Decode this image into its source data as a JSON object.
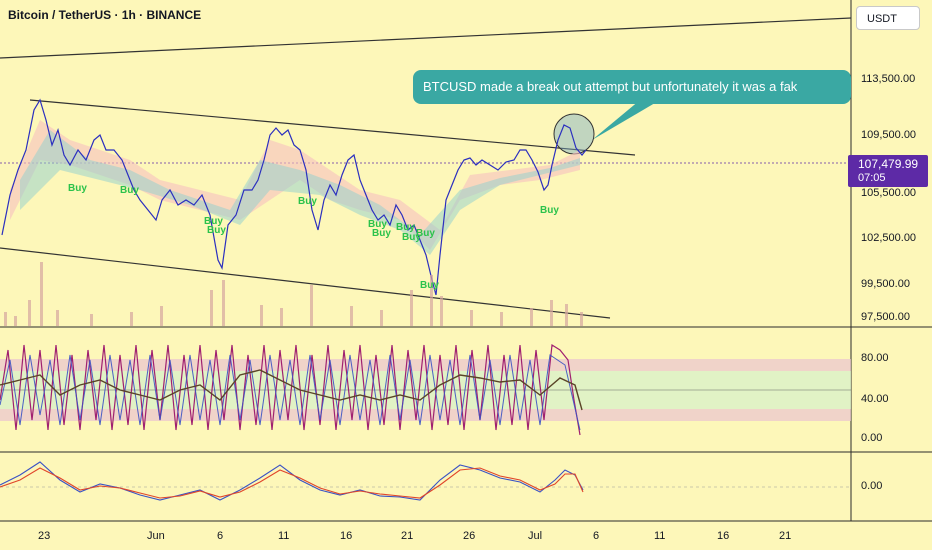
{
  "header": {
    "title": "Bitcoin / TetherUS · 1h · BINANCE",
    "currency": "USDT"
  },
  "callout": {
    "text": "BTCUSD made a break out attempt but unfortunately it was a fak"
  },
  "price_badge": {
    "price": "107,479.99",
    "countdown": "07:05"
  },
  "price_axis": [
    "113,500.00",
    "109,500.00",
    "105,500.00",
    "102,500.00",
    "99,500.00",
    "97,500.00"
  ],
  "osc_axis": [
    "80.00",
    "40.00",
    "0.00"
  ],
  "macd_axis": [
    "0.00"
  ],
  "time_axis": [
    "23",
    "Jun",
    "6",
    "11",
    "16",
    "21",
    "26",
    "Jul",
    "6",
    "11",
    "16",
    "21"
  ],
  "buy_labels": [
    "Buy",
    "Buy",
    "Buy",
    "Buy",
    "Buy",
    "Buy",
    "Buy",
    "Buy",
    "Buy",
    "Buy",
    "Buy",
    "Buy"
  ],
  "colors": {
    "background": "#fdf7b9",
    "callout": "#3aa8a3",
    "price_badge": "#5d2aa6",
    "buy": "#2bc24b",
    "candles": "#2b2fbf"
  }
}
